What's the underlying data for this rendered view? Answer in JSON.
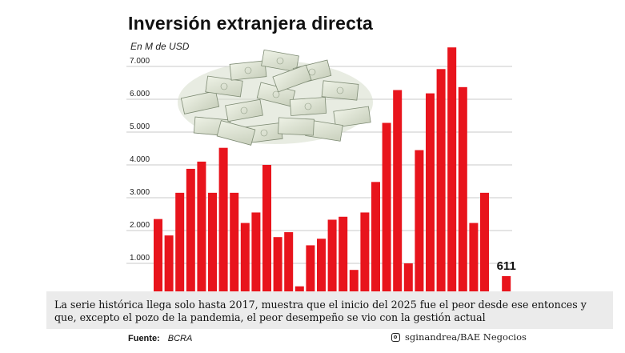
{
  "chart_data": {
    "type": "bar",
    "title": "Inversión extranjera directa",
    "ylabel": "En M de USD",
    "yticks": [
      "1.000",
      "2.000",
      "3.000",
      "4.000",
      "5.000",
      "6.000",
      "7.000"
    ],
    "ylim": [
      0,
      7500
    ],
    "grid": true,
    "bar_color": "#e8141c",
    "values": [
      2350,
      1850,
      3150,
      3880,
      4100,
      3150,
      4520,
      3150,
      2230,
      2550,
      4000,
      1800,
      1950,
      300,
      1550,
      1750,
      2330,
      2420,
      800,
      2550,
      3480,
      5280,
      6280,
      1000,
      4450,
      6180,
      6920,
      7580,
      6370,
      2230,
      3150,
      null,
      611
    ],
    "annotation": {
      "text": "611"
    }
  },
  "caption": "La serie histórica llega solo hasta 2017, muestra que el inicio del 2025 fue el peor desde ese entonces y que, excepto el pozo de la pandemia, el peor desempeño se vio con la gestión actual",
  "source": {
    "label": "Fuente:",
    "value": "BCRA"
  },
  "credit": {
    "icon": "instagram-icon",
    "text": "sginandrea/BAE Negocios"
  }
}
